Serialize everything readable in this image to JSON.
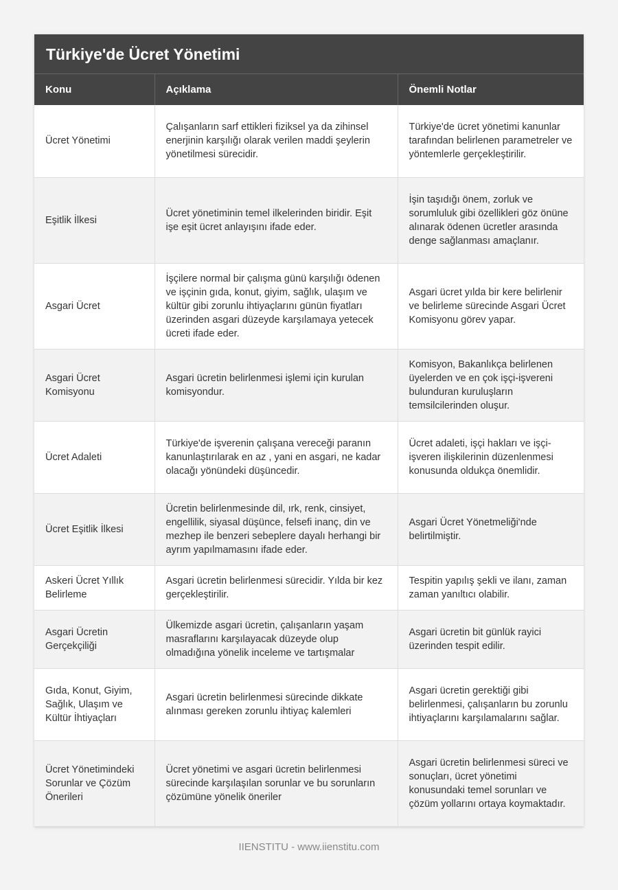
{
  "title": "Türkiye'de Ücret Yönetimi",
  "columns": [
    "Konu",
    "Açıklama",
    "Önemli Notlar"
  ],
  "rows": [
    [
      "Ücret Yönetimi",
      "Çalışanların sarf ettikleri fiziksel ya da zihinsel enerjinin karşılığı olarak verilen maddi şeylerin yönetilmesi sürecidir.",
      "Türkiye'de ücret yönetimi kanunlar tarafından belirlenen parametreler ve yöntemlerle gerçekleştirilir."
    ],
    [
      "Eşitlik İlkesi",
      "Ücret yönetiminin temel ilkelerinden biridir. Eşit işe eşit ücret anlayışını ifade eder.",
      "İşin taşıdığı önem, zorluk ve sorumluluk gibi özellikleri göz önüne alınarak ödenen ücretler arasında denge sağlanması amaçlanır."
    ],
    [
      "Asgari Ücret",
      "İşçilere normal bir çalışma günü karşılığı ödenen ve işçinin gıda, konut, giyim, sağlık, ulaşım ve kültür gibi zorunlu ihtiyaçlarını günün fiyatları üzerinden asgari düzeyde karşılamaya yetecek ücreti ifade eder.",
      "Asgari ücret yılda bir kere belirlenir ve belirleme sürecinde Asgari Ücret Komisyonu görev yapar."
    ],
    [
      "Asgari Ücret Komisyonu",
      "Asgari ücretin belirlenmesi işlemi için kurulan komisyondur.",
      "Komisyon, Bakanlıkça belirlenen üyelerden ve en çok işçi-işvereni bulunduran kuruluşların temsilcilerinden oluşur."
    ],
    [
      "Ücret Adaleti",
      "Türkiye'de işverenin çalışana vereceği paranın kanunlaştırılarak en az , yani en asgari, ne kadar olacağı yönündeki düşüncedir.",
      "Ücret adaleti, işçi hakları ve işçi-işveren ilişkilerinin düzenlenmesi konusunda oldukça önemlidir."
    ],
    [
      "Ücret Eşitlik İlkesi",
      "Ücretin belirlenmesinde dil, ırk, renk, cinsiyet, engellilik, siyasal düşünce, felsefi inanç, din ve mezhep ile benzeri sebeplere dayalı herhangi bir ayrım yapılmamasını ifade eder.",
      "Asgari Ücret Yönetmeliği'nde belirtilmiştir."
    ],
    [
      "Askeri Ücret Yıllık Belirleme",
      "Asgari ücretin belirlenmesi sürecidir. Yılda bir kez gerçekleştirilir.",
      "Tespitin yapılış şekli ve ilanı, zaman zaman yanıltıcı olabilir."
    ],
    [
      "Asgari Ücretin Gerçekçiliği",
      "Ülkemizde asgari ücretin, çalışanların yaşam masraflarını karşılayacak düzeyde olup olmadığına yönelik inceleme ve tartışmalar",
      "Asgari ücretin bit günlük rayici üzerinden tespit edilir."
    ],
    [
      "Gıda, Konut, Giyim, Sağlık, Ulaşım ve Kültür İhtiyaçları",
      "Asgari ücretin belirlenmesi sürecinde dikkate alınması gereken zorunlu ihtiyaç kalemleri",
      "Asgari ücretin gerektiği gibi belirlenmesi, çalışanların bu zorunlu ihtiyaçlarını karşılamalarını sağlar."
    ],
    [
      "Ücret Yönetimindeki Sorunlar ve Çözüm Önerileri",
      "Ücret yönetimi ve asgari ücretin belirlenmesi sürecinde karşılaşılan sorunlar ve bu sorunların çözümüne yönelik öneriler",
      "Asgari ücretin belirlenmesi süreci ve sonuçları, ücret yönetimi konusundaki temel sorunları ve çözüm yollarını ortaya koymaktadır."
    ]
  ],
  "footer": "IIENSTITU - www.iienstitu.com"
}
